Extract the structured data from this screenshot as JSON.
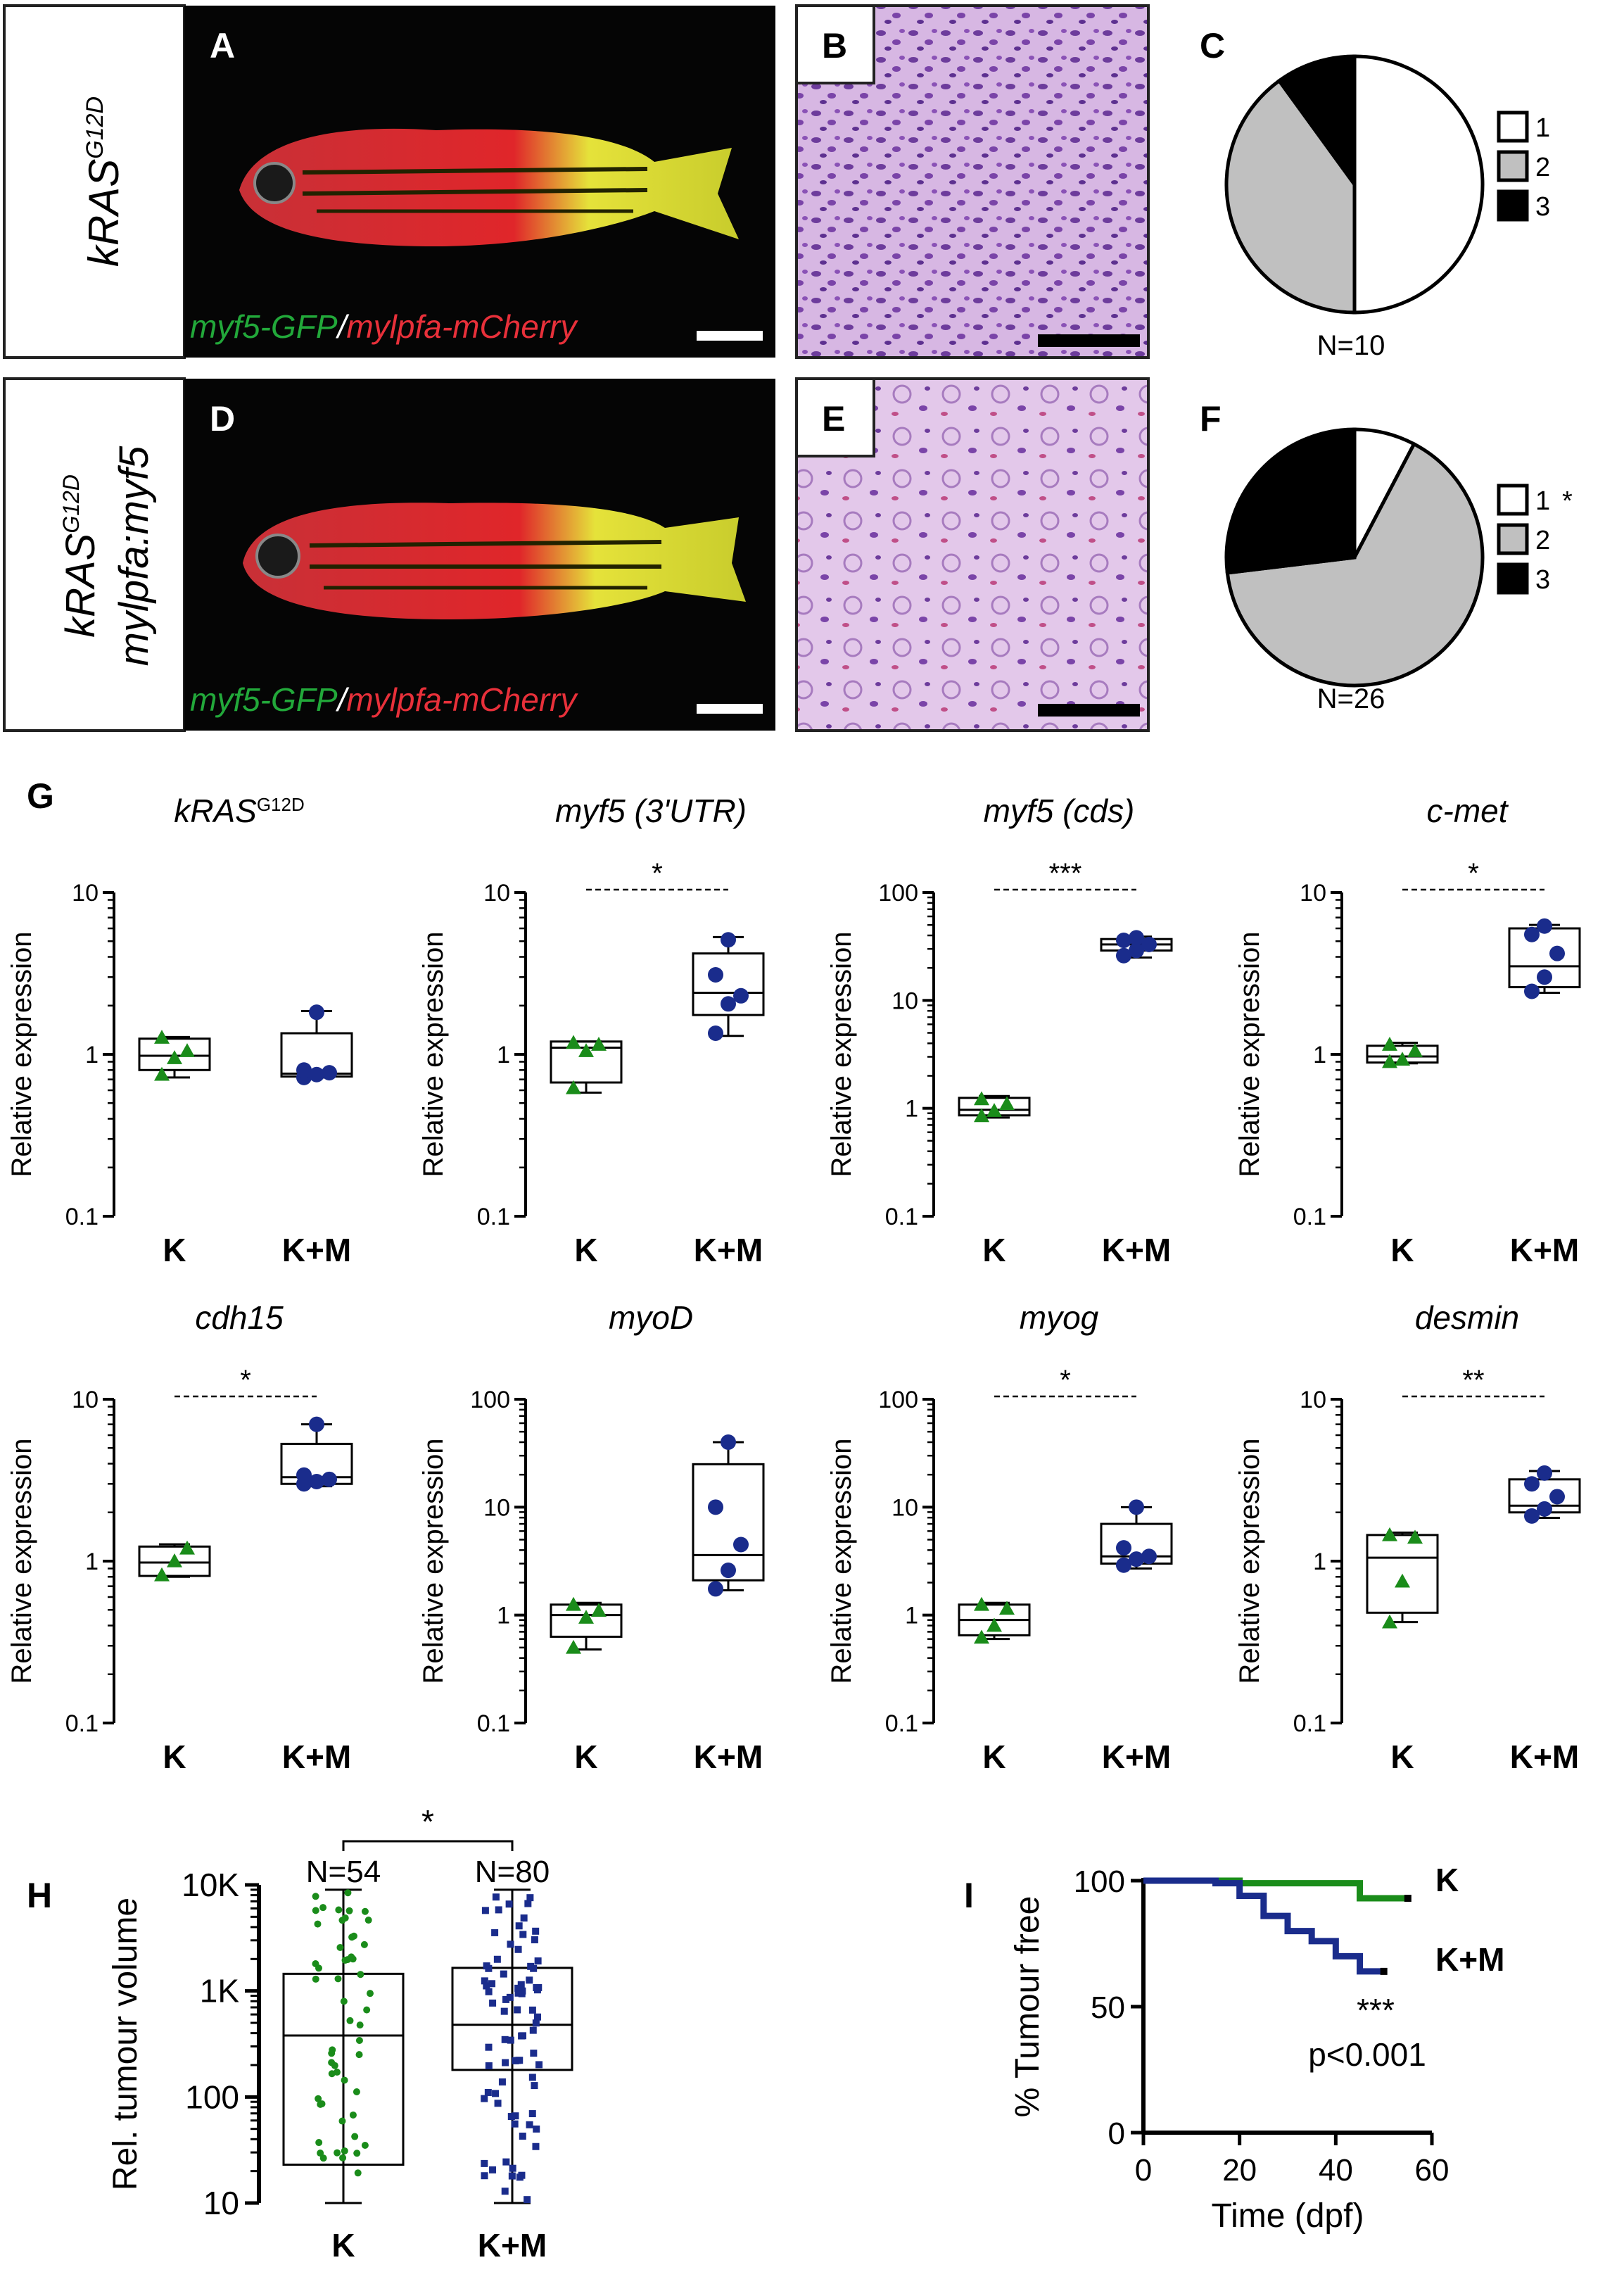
{
  "panels": {
    "A": {
      "letter": "A",
      "genotype": "kRAS",
      "genotype_sup": "G12D",
      "label_green": "myf5-GFP",
      "label_sep": "/",
      "label_red": "mylpfa-mCherry"
    },
    "B": {
      "letter": "B"
    },
    "C": {
      "letter": "C",
      "n_label": "N=10"
    },
    "D": {
      "letter": "D",
      "genotype": "kRAS",
      "genotype_sup": "G12D",
      "genotype_line2": "mylpfa:myf5",
      "label_green": "myf5-GFP",
      "label_sep": "/",
      "label_red": "mylpfa-mCherry"
    },
    "E": {
      "letter": "E"
    },
    "F": {
      "letter": "F",
      "n_label": "N=26"
    },
    "G": {
      "letter": "G"
    },
    "H": {
      "letter": "H"
    },
    "I": {
      "letter": "I"
    }
  },
  "colors": {
    "K": "#1a8c1a",
    "KM": "#1a2c8c",
    "pie_white": "#ffffff",
    "pie_grey": "#c0c0c0",
    "pie_black": "#000000",
    "histo": "#d8b4e0",
    "fish_red": "#d8262a",
    "fish_yellow": "#e0e030"
  },
  "chart_data": [
    {
      "id": "C",
      "type": "pie",
      "slices": [
        {
          "label": "1",
          "value": 5
        },
        {
          "label": "2",
          "value": 4
        },
        {
          "label": "3",
          "value": 1
        }
      ],
      "n_label": "N=10",
      "legend": [
        {
          "label": "1",
          "star": ""
        },
        {
          "label": "2",
          "star": ""
        },
        {
          "label": "3",
          "star": ""
        }
      ]
    },
    {
      "id": "F",
      "type": "pie",
      "slices": [
        {
          "label": "1",
          "value": 2
        },
        {
          "label": "2",
          "value": 17
        },
        {
          "label": "3",
          "value": 7
        }
      ],
      "n_label": "N=26",
      "legend": [
        {
          "label": "1",
          "star": "*"
        },
        {
          "label": "2",
          "star": ""
        },
        {
          "label": "3",
          "star": ""
        }
      ]
    },
    {
      "id": "G1",
      "type": "box",
      "title": "kRAS",
      "title_sup": "G12D",
      "ylabel": "Relative expression",
      "log": true,
      "ylim": [
        0.1,
        10
      ],
      "yticks": [
        "0.1",
        "1",
        "10"
      ],
      "categories": [
        "K",
        "K+M"
      ],
      "sig": "",
      "groups": [
        {
          "name": "K",
          "min": 0.72,
          "q1": 0.8,
          "median": 0.98,
          "q3": 1.25,
          "max": 1.28,
          "points": [
            0.75,
            0.95,
            1.05,
            1.27
          ]
        },
        {
          "name": "K+M",
          "min": 0.72,
          "q1": 0.73,
          "median": 0.76,
          "q3": 1.35,
          "max": 1.85,
          "points": [
            0.72,
            0.75,
            0.77,
            0.8,
            1.82
          ]
        }
      ]
    },
    {
      "id": "G2",
      "type": "box",
      "title": "myf5 (3'UTR)",
      "title_sup": "",
      "ylabel": "Relative expression",
      "log": true,
      "ylim": [
        0.1,
        10
      ],
      "yticks": [
        "0.1",
        "1",
        "10"
      ],
      "categories": [
        "K",
        "K+M"
      ],
      "sig": "*",
      "groups": [
        {
          "name": "K",
          "min": 0.58,
          "q1": 0.67,
          "median": 1.1,
          "q3": 1.2,
          "max": 1.2,
          "points": [
            0.62,
            1.05,
            1.15,
            1.18
          ]
        },
        {
          "name": "K+M",
          "min": 1.3,
          "q1": 1.75,
          "median": 2.4,
          "q3": 4.2,
          "max": 5.3,
          "points": [
            1.35,
            2.05,
            2.3,
            3.1,
            5.1
          ]
        }
      ]
    },
    {
      "id": "G3",
      "type": "box",
      "title": "myf5 (cds)",
      "title_sup": "",
      "ylabel": "Relative expression",
      "log": true,
      "ylim": [
        0.1,
        100
      ],
      "yticks": [
        "0.1",
        "1",
        "10",
        "100"
      ],
      "categories": [
        "K",
        "K+M"
      ],
      "sig": "***",
      "groups": [
        {
          "name": "K",
          "min": 0.82,
          "q1": 0.86,
          "median": 0.97,
          "q3": 1.25,
          "max": 1.3,
          "points": [
            0.85,
            0.95,
            1.1,
            1.22
          ]
        },
        {
          "name": "K+M",
          "min": 25,
          "q1": 29,
          "median": 33,
          "q3": 37,
          "max": 39,
          "points": [
            26,
            29,
            33,
            36,
            38
          ]
        }
      ]
    },
    {
      "id": "G4",
      "type": "box",
      "title": "c-met",
      "title_sup": "",
      "ylabel": "Relative expression",
      "log": true,
      "ylim": [
        0.1,
        10
      ],
      "yticks": [
        "0.1",
        "1",
        "10"
      ],
      "categories": [
        "K",
        "K+M"
      ],
      "sig": "*",
      "groups": [
        {
          "name": "K",
          "min": 0.88,
          "q1": 0.89,
          "median": 0.97,
          "q3": 1.13,
          "max": 1.18,
          "points": [
            0.9,
            0.93,
            1.05,
            1.15
          ]
        },
        {
          "name": "K+M",
          "min": 2.4,
          "q1": 2.6,
          "median": 3.5,
          "q3": 6.0,
          "max": 6.3,
          "points": [
            2.45,
            3.0,
            4.2,
            5.5,
            6.2
          ]
        }
      ]
    },
    {
      "id": "G5",
      "type": "box",
      "title": "cdh15",
      "title_sup": "",
      "ylabel": "Relative expression",
      "log": true,
      "ylim": [
        0.1,
        10
      ],
      "yticks": [
        "0.1",
        "1",
        "10"
      ],
      "categories": [
        "K",
        "K+M"
      ],
      "sig": "*",
      "groups": [
        {
          "name": "K",
          "min": 0.8,
          "q1": 0.81,
          "median": 0.98,
          "q3": 1.23,
          "max": 1.27,
          "points": [
            0.82,
            1.0,
            1.2
          ]
        },
        {
          "name": "K+M",
          "min": 2.9,
          "q1": 3.0,
          "median": 3.3,
          "q3": 5.3,
          "max": 7.0,
          "points": [
            3.0,
            3.1,
            3.2,
            3.4,
            7.0
          ]
        }
      ]
    },
    {
      "id": "G6",
      "type": "box",
      "title": "myoD",
      "title_sup": "",
      "ylabel": "Relative expression",
      "log": true,
      "ylim": [
        0.1,
        100
      ],
      "yticks": [
        "0.1",
        "1",
        "10",
        "100"
      ],
      "categories": [
        "K",
        "K+M"
      ],
      "sig": "",
      "groups": [
        {
          "name": "K",
          "min": 0.48,
          "q1": 0.63,
          "median": 1.0,
          "q3": 1.25,
          "max": 1.3,
          "points": [
            0.5,
            0.95,
            1.1,
            1.25
          ]
        },
        {
          "name": "K+M",
          "min": 1.7,
          "q1": 2.1,
          "median": 3.6,
          "q3": 25,
          "max": 40,
          "points": [
            1.75,
            2.6,
            4.5,
            10,
            40
          ]
        }
      ]
    },
    {
      "id": "G7",
      "type": "box",
      "title": "myog",
      "title_sup": "",
      "ylabel": "Relative expression",
      "log": true,
      "ylim": [
        0.1,
        100
      ],
      "yticks": [
        "0.1",
        "1",
        "10",
        "100"
      ],
      "categories": [
        "K",
        "K+M"
      ],
      "sig": "*",
      "groups": [
        {
          "name": "K",
          "min": 0.6,
          "q1": 0.65,
          "median": 0.9,
          "q3": 1.25,
          "max": 1.3,
          "points": [
            0.62,
            0.8,
            1.15,
            1.25
          ]
        },
        {
          "name": "K+M",
          "min": 2.7,
          "q1": 3.0,
          "median": 3.5,
          "q3": 7.0,
          "max": 10,
          "points": [
            2.9,
            3.3,
            3.5,
            4.2,
            10
          ]
        }
      ]
    },
    {
      "id": "G8",
      "type": "box",
      "title": "desmin",
      "title_sup": "",
      "ylabel": "Relative expression",
      "log": true,
      "ylim": [
        0.1,
        10
      ],
      "yticks": [
        "0.1",
        "1",
        "10"
      ],
      "categories": [
        "K",
        "K+M"
      ],
      "sig": "**",
      "groups": [
        {
          "name": "K",
          "min": 0.42,
          "q1": 0.48,
          "median": 1.05,
          "q3": 1.45,
          "max": 1.5,
          "points": [
            0.42,
            0.75,
            1.4,
            1.45
          ]
        },
        {
          "name": "K+M",
          "min": 1.85,
          "q1": 2.0,
          "median": 2.2,
          "q3": 3.2,
          "max": 3.6,
          "points": [
            1.9,
            2.1,
            2.5,
            3.0,
            3.5
          ]
        }
      ]
    },
    {
      "id": "H",
      "type": "box",
      "ylabel": "Rel. tumour volume",
      "log": true,
      "ylim": [
        10,
        10000
      ],
      "yticks": [
        "10",
        "100",
        "1K",
        "10K"
      ],
      "categories": [
        "K",
        "K+M"
      ],
      "sig": "*",
      "groups": [
        {
          "name": "K",
          "n_label": "N=54",
          "n": 54,
          "min": 10,
          "q1": 23,
          "median": 380,
          "q3": 1450,
          "max": 9000
        },
        {
          "name": "K+M",
          "n_label": "N=80",
          "n": 80,
          "min": 10,
          "q1": 180,
          "median": 480,
          "q3": 1650,
          "max": 9000
        }
      ]
    },
    {
      "id": "I",
      "type": "line",
      "xlabel": "Time (dpf)",
      "ylabel": "% Tumour free",
      "xlim": [
        0,
        60
      ],
      "ylim": [
        0,
        100
      ],
      "xticks": [
        "0",
        "20",
        "40",
        "60"
      ],
      "yticks": [
        "0",
        "50",
        "100"
      ],
      "sig": "***",
      "pvalue": "p<0.001",
      "series": [
        {
          "name": "K",
          "x": [
            0,
            20,
            20,
            45,
            45,
            55
          ],
          "y": [
            100,
            100,
            99,
            99,
            93,
            93
          ]
        },
        {
          "name": "K+M",
          "x": [
            0,
            15,
            15,
            20,
            20,
            25,
            25,
            30,
            30,
            35,
            35,
            40,
            40,
            45,
            45,
            50
          ],
          "y": [
            100,
            100,
            99,
            99,
            94,
            94,
            86,
            86,
            80,
            80,
            76,
            76,
            70,
            70,
            64,
            64
          ]
        }
      ]
    }
  ]
}
